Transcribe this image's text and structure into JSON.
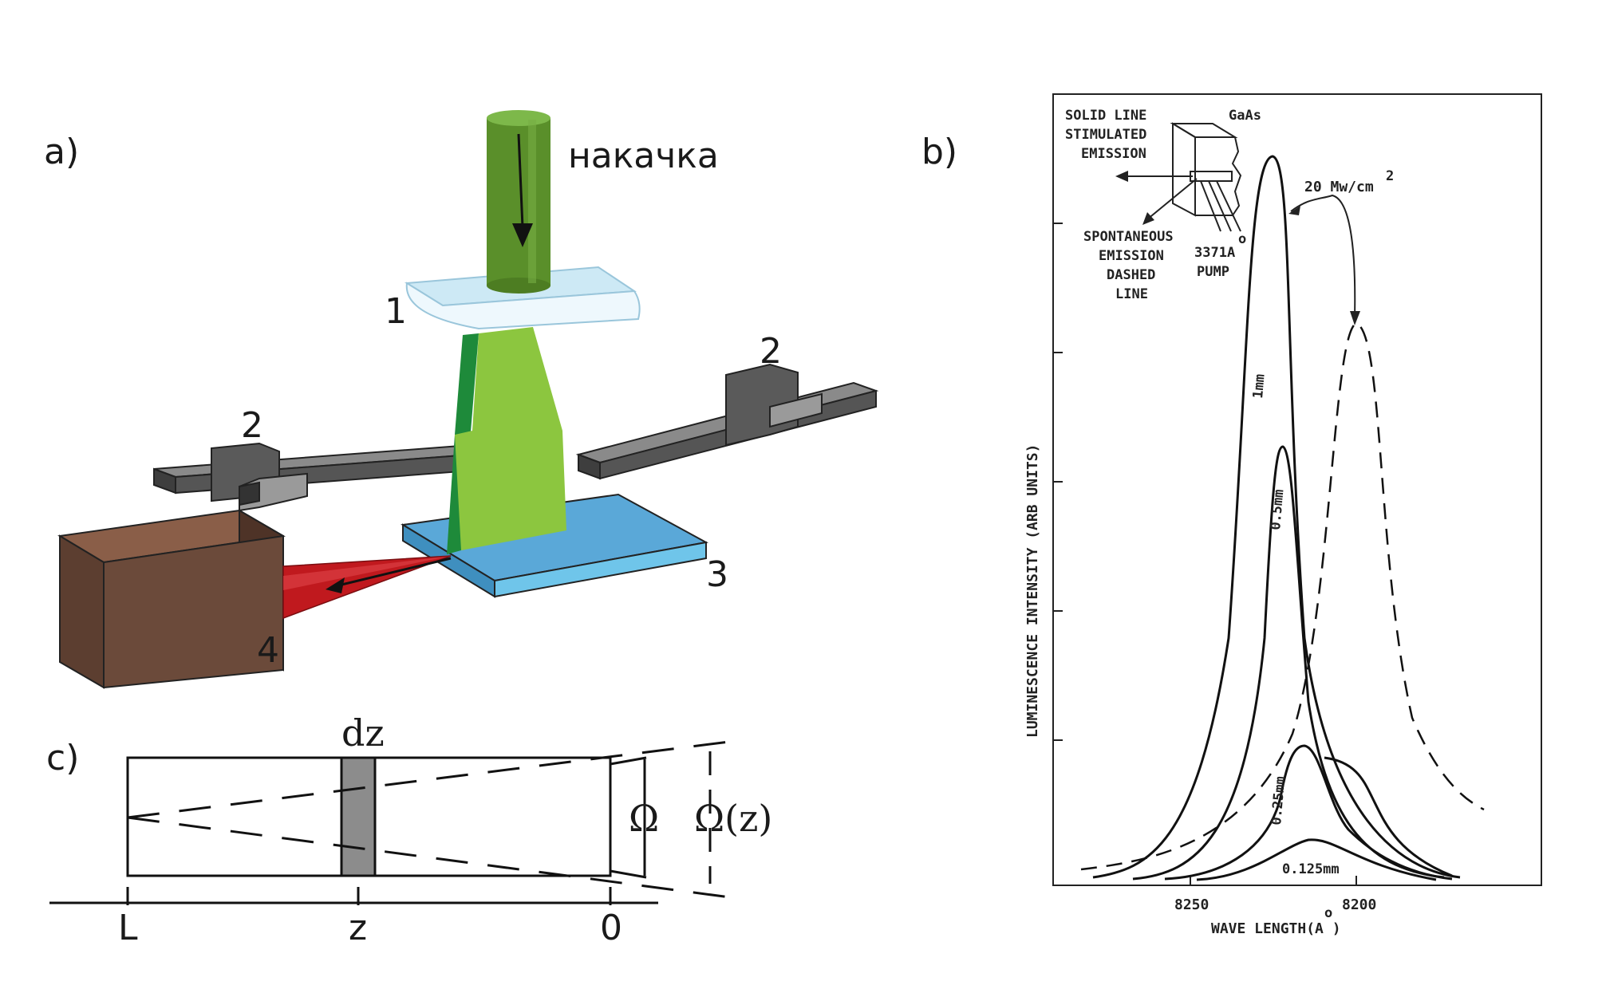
{
  "panel_a": {
    "label": "a)",
    "pump_label": "накачка",
    "num_1": "1",
    "num_2_left": "2",
    "num_2_right": "2",
    "num_3": "3",
    "num_4": "4",
    "colors": {
      "pump_beam": "#5a8f2a",
      "light_cone": "#8cc63f",
      "lens": "#cde9f5",
      "sample": "#5aa8d8",
      "shutter": "#555555",
      "detector": "#6b4a3a",
      "emission": "#c0191e"
    }
  },
  "panel_b": {
    "label": "b)",
    "legend_solid": [
      "SOLID LINE",
      "STIMULATED",
      "EMISSION"
    ],
    "legend_dashed": [
      "SPONTANEOUS",
      "EMISSION",
      "DASHED",
      "LINE"
    ],
    "material": "GaAs",
    "pump_line1": "3371A",
    "pump_line2": "PUMP",
    "power": "20 Mw/cm",
    "power_sup": "2",
    "curve_labels": [
      "1mm",
      "0.5mm",
      "0.25mm",
      "0.125mm"
    ],
    "ylabel": "LUMINESCENCE INTENSITY (ARB UNITS)",
    "xlabel": "WAVE LENGTH(A )",
    "xticks": [
      "8250",
      "8200"
    ]
  },
  "panel_c": {
    "label": "c)",
    "dz": "dz",
    "omega": "Ω",
    "omega_z": "Ω(z)",
    "axis_L": "L",
    "axis_z": "z",
    "axis_0": "0"
  }
}
